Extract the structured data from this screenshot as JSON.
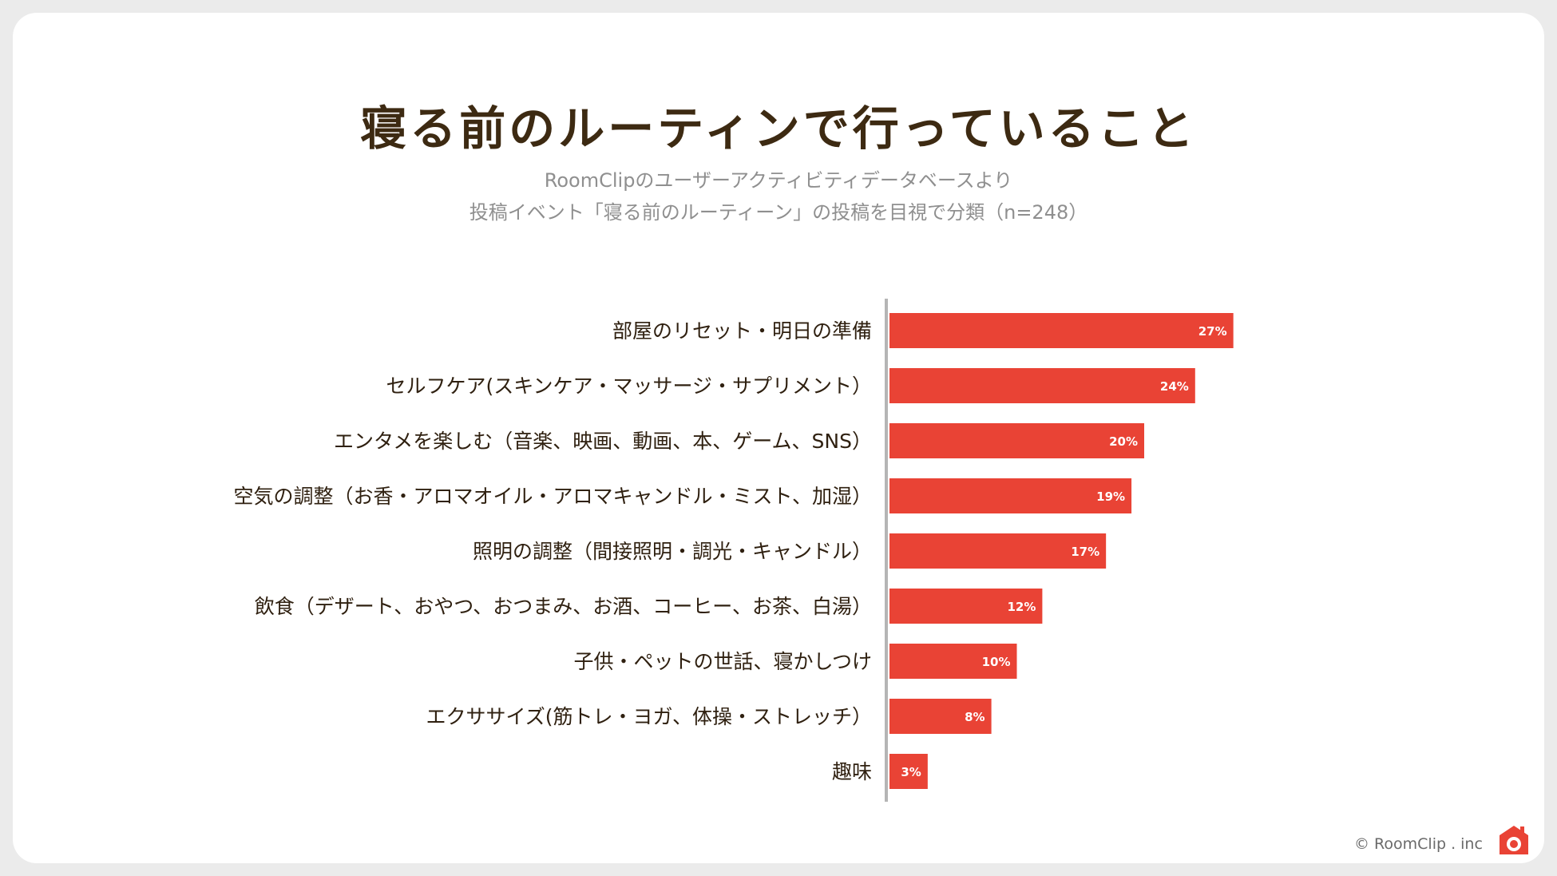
{
  "title": "寝る前のルーティンで行っていること",
  "subtitle_line1": "RoomClipのユーザーアクティビティデータベースより",
  "subtitle_line2": "投稿イベント「寝る前のルーティーン」の投稿を目視で分類（n=248）",
  "footer": {
    "copyright": "© RoomClip . inc",
    "logo_icon": "camera-house-icon"
  },
  "colors": {
    "bar": "#e94335",
    "axis": "#b5b5b5",
    "title": "#3d2a12"
  },
  "chart_data": {
    "type": "bar",
    "orientation": "horizontal",
    "title": "寝る前のルーティンで行っていること",
    "xlabel": "",
    "ylabel": "",
    "xlim": [
      0,
      45
    ],
    "grid": false,
    "categories": [
      "部屋のリセット・明日の準備",
      "セルフケア(スキンケア・マッサージ・サプリメント）",
      "エンタメを楽しむ（音楽、映画、動画、本、ゲーム、SNS）",
      "空気の調整（お香・アロマオイル・アロマキャンドル・ミスト、加湿）",
      "照明の調整（間接照明・調光・キャンドル）",
      "飲食（デザート、おやつ、おつまみ、お酒、コーヒー、お茶、白湯）",
      "子供・ペットの世話、寝かしつけ",
      "エクササイズ(筋トレ・ヨガ、体操・ストレッチ）",
      "趣味"
    ],
    "values": [
      27,
      24,
      20,
      19,
      17,
      12,
      10,
      8,
      3
    ],
    "value_labels": [
      "27%",
      "24%",
      "20%",
      "19%",
      "17%",
      "12%",
      "10%",
      "8%",
      "3%"
    ]
  }
}
